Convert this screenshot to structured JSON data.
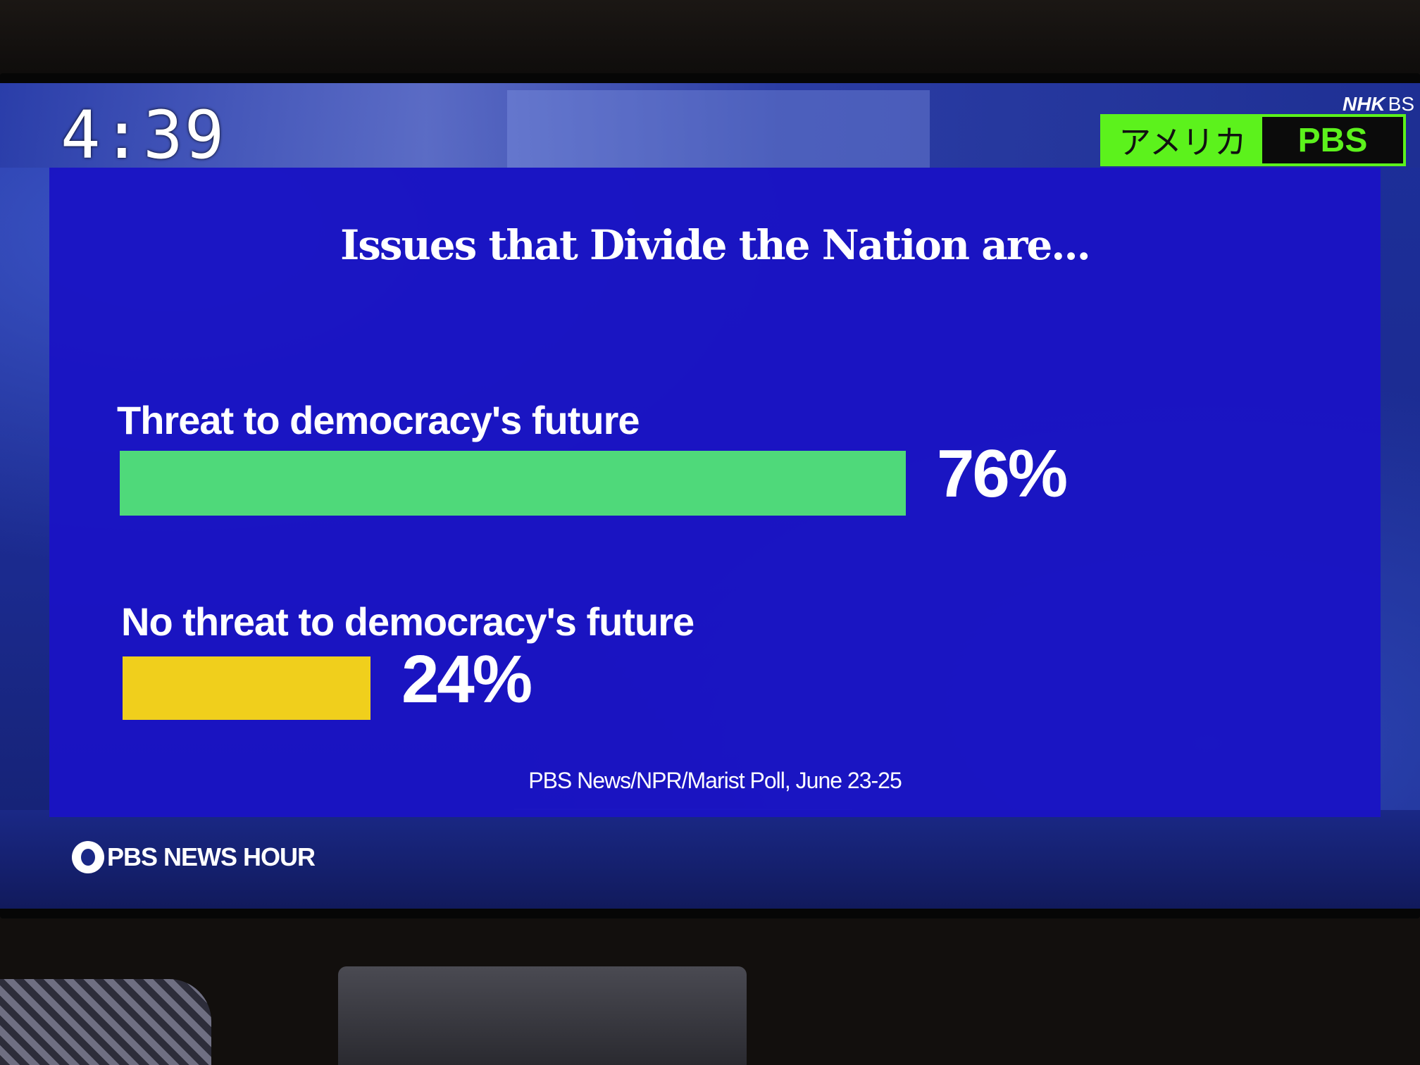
{
  "broadcast": {
    "clock": "4:39",
    "network_logo": "NHK",
    "network_suffix": "BS",
    "country_tag": "アメリカ",
    "source_tag": "PBS",
    "show_logo": "PBS NEWS HOUR"
  },
  "colors": {
    "panel": "#1a14c4",
    "bar_threat": "#4fd97a",
    "bar_no_threat": "#f0cf1c",
    "tag_green": "#5cf21c"
  },
  "chart_data": {
    "type": "bar",
    "orientation": "horizontal",
    "title": "Issues that Divide the Nation are...",
    "categories": [
      "Threat to democracy's future",
      "No threat to democracy's future"
    ],
    "values": [
      76,
      24
    ],
    "value_labels": [
      "76%",
      "24%"
    ],
    "unit": "%",
    "xlim": [
      0,
      100
    ],
    "bar_colors": [
      "#4fd97a",
      "#f0cf1c"
    ],
    "source": "PBS News/NPR/Marist Poll, June 23-25",
    "grid": false,
    "legend": "none"
  }
}
